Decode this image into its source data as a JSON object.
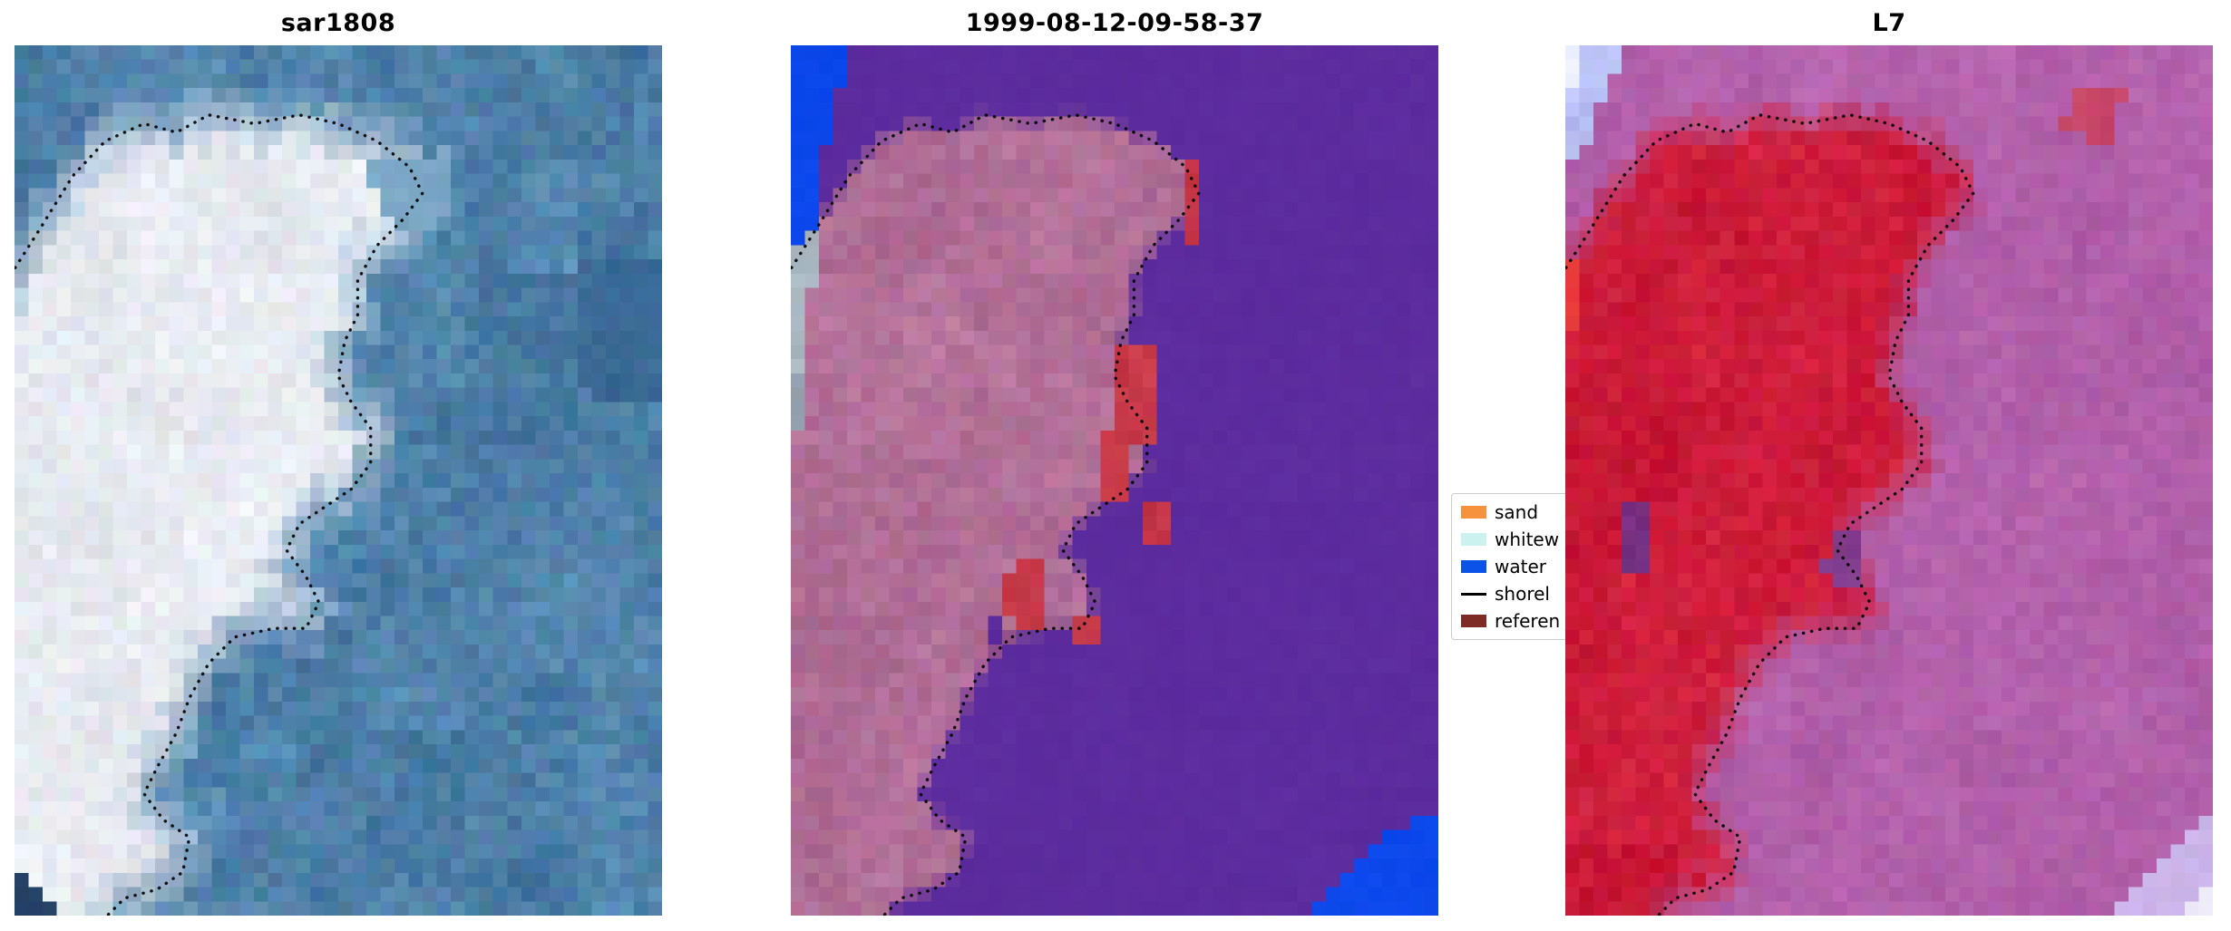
{
  "chart_data": {
    "type": "heatmap",
    "subtype": "coastal-satellite-image-triptych-with-classification-overlay",
    "panels": [
      {
        "id": "sar1808",
        "title": "sar1808",
        "water_color": [
          78,
          128,
          168
        ],
        "land_color": [
          231,
          234,
          240
        ],
        "water_noise": 22,
        "land_noise": 14,
        "edge_softness": 4,
        "patches": [
          {
            "points": [
              [
                -2,
                92
              ],
              [
                10,
                101
              ],
              [
                -2,
                101
              ]
            ],
            "color": [
              32,
              60,
              98
            ],
            "noise": 10
          },
          {
            "points": [
              [
                86,
                26
              ],
              [
                101,
                24
              ],
              [
                101,
                42
              ],
              [
                88,
                40
              ]
            ],
            "color": [
              58,
              106,
              150
            ],
            "noise": 12
          },
          {
            "points": [
              [
                55,
                14
              ],
              [
                68,
                12
              ],
              [
                66,
                22
              ],
              [
                56,
                20
              ]
            ],
            "color": [
              122,
              164,
              195
            ],
            "noise": 12
          }
        ]
      },
      {
        "id": "classified",
        "title": "1999-08-12-09-58-37",
        "water_color": [
          92,
          44,
          158
        ],
        "land_color": [
          178,
          112,
          152
        ],
        "water_noise": 3,
        "land_noise": 16,
        "edge_softness": 0.8,
        "patches": [
          {
            "points": [
              [
                -2,
                -2
              ],
              [
                10,
                -2
              ],
              [
                7,
                7
              ],
              [
                5,
                13
              ],
              [
                4,
                22
              ],
              [
                -2,
                23
              ]
            ],
            "color": [
              12,
              72,
              235
            ],
            "noise": 4
          },
          {
            "points": [
              [
                -2,
                23
              ],
              [
                4,
                22
              ],
              [
                3,
                31
              ],
              [
                2,
                38
              ],
              [
                -2,
                38
              ]
            ],
            "color": [
              168,
              182,
              192
            ],
            "noise": 10
          },
          {
            "points": [
              [
                -2,
                38
              ],
              [
                2,
                38
              ],
              [
                1,
                45
              ],
              [
                -2,
                46
              ]
            ],
            "color": [
              150,
              160,
              175
            ],
            "noise": 10
          },
          {
            "points": [
              [
                101,
                87
              ],
              [
                101,
                101
              ],
              [
                79,
                101
              ],
              [
                85,
                96
              ],
              [
                90,
                92
              ],
              [
                96,
                89
              ]
            ],
            "color": [
              12,
              72,
              235
            ],
            "noise": 4
          },
          {
            "points": [
              [
                60,
                13
              ],
              [
                64,
                13
              ],
              [
                64,
                23
              ],
              [
                60,
                22
              ]
            ],
            "color": [
              198,
              56,
              72
            ],
            "noise": 10
          },
          {
            "points": [
              [
                51,
                35
              ],
              [
                56,
                35
              ],
              [
                56,
                45
              ],
              [
                52,
                47
              ],
              [
                52,
                52
              ],
              [
                48,
                52
              ],
              [
                49,
                44
              ],
              [
                51,
                41
              ]
            ],
            "color": [
              198,
              56,
              72
            ],
            "noise": 10
          },
          {
            "points": [
              [
                55,
                53
              ],
              [
                59,
                53
              ],
              [
                59,
                58
              ],
              [
                55,
                58
              ]
            ],
            "color": [
              198,
              56,
              72
            ],
            "noise": 10
          },
          {
            "points": [
              [
                34,
                59
              ],
              [
                39,
                60
              ],
              [
                38,
                67
              ],
              [
                33,
                66
              ]
            ],
            "color": [
              198,
              56,
              72
            ],
            "noise": 10
          },
          {
            "points": [
              [
                44,
                66
              ],
              [
                47,
                66
              ],
              [
                47,
                69
              ],
              [
                44,
                69
              ]
            ],
            "color": [
              198,
              56,
              72
            ],
            "noise": 10
          },
          {
            "points": [
              [
                30,
                66
              ],
              [
                33,
                66
              ],
              [
                33,
                69
              ],
              [
                30,
                69
              ]
            ],
            "color": [
              92,
              44,
              158
            ],
            "noise": 3
          }
        ]
      },
      {
        "id": "l7",
        "title": "L7",
        "water_color": [
          178,
          96,
          170
        ],
        "land_color": [
          205,
          28,
          58
        ],
        "water_noise": 12,
        "land_noise": 16,
        "edge_softness": 2.5,
        "patches": [
          {
            "points": [
              [
                -2,
                -2
              ],
              [
                10,
                -2
              ],
              [
                6,
                6
              ],
              [
                3,
                12
              ],
              [
                -2,
                14
              ]
            ],
            "color": [
              185,
              190,
              242
            ],
            "noise": 14
          },
          {
            "points": [
              [
                -2,
                -2
              ],
              [
                4,
                -2
              ],
              [
                1,
                5
              ],
              [
                -2,
                6
              ]
            ],
            "color": [
              235,
              238,
              252
            ],
            "noise": 6
          },
          {
            "points": [
              [
                -2,
                24
              ],
              [
                2,
                24
              ],
              [
                2,
                33
              ],
              [
                -2,
                33
              ]
            ],
            "color": [
              235,
              60,
              60
            ],
            "noise": 10
          },
          {
            "points": [
              [
                78,
                4
              ],
              [
                86,
                5
              ],
              [
                85,
                12
              ],
              [
                77,
                10
              ]
            ],
            "color": [
              200,
              70,
              105
            ],
            "noise": 10
          },
          {
            "points": [
              [
                101,
                86
              ],
              [
                101,
                101
              ],
              [
                83,
                101
              ],
              [
                89,
                96
              ],
              [
                95,
                91
              ]
            ],
            "color": [
              205,
              182,
              235
            ],
            "noise": 10
          },
          {
            "points": [
              [
                101,
                95
              ],
              [
                101,
                101
              ],
              [
                93,
                101
              ]
            ],
            "color": [
              238,
              235,
              250
            ],
            "noise": 6
          },
          {
            "points": [
              [
                8,
                52
              ],
              [
                14,
                53
              ],
              [
                13,
                61
              ],
              [
                8,
                60
              ]
            ],
            "color": [
              120,
              50,
              130
            ],
            "noise": 10
          },
          {
            "points": [
              [
                41,
                55
              ],
              [
                46,
                56
              ],
              [
                45,
                62
              ],
              [
                40,
                61
              ]
            ],
            "color": [
              130,
              60,
              140
            ],
            "noise": 10
          }
        ]
      }
    ],
    "legend": {
      "entries": [
        {
          "label": "sand",
          "type": "patch",
          "color": "#f6913e"
        },
        {
          "label": "whitew",
          "type": "patch",
          "color": "#ccf2ef"
        },
        {
          "label": "water",
          "type": "patch",
          "color": "#0b52e8"
        },
        {
          "label": "shorel",
          "type": "line",
          "color": "#000000"
        },
        {
          "label": "referen",
          "type": "patch",
          "color": "#7e2b25"
        }
      ]
    },
    "shoreline": {
      "color": "#000000",
      "style": "dotted",
      "points": [
        [
          -2,
          28
        ],
        [
          4,
          21
        ],
        [
          9,
          15
        ],
        [
          14,
          11
        ],
        [
          20,
          9
        ],
        [
          25,
          10
        ],
        [
          30,
          8
        ],
        [
          37,
          9
        ],
        [
          44,
          8
        ],
        [
          50,
          9
        ],
        [
          56,
          11
        ],
        [
          61,
          14
        ],
        [
          63,
          17
        ],
        [
          60,
          20
        ],
        [
          56,
          23
        ],
        [
          53,
          27
        ],
        [
          53,
          31
        ],
        [
          51,
          34
        ],
        [
          50,
          38
        ],
        [
          52,
          41
        ],
        [
          55,
          44
        ],
        [
          55,
          48
        ],
        [
          52,
          51
        ],
        [
          48,
          53
        ],
        [
          44,
          55
        ],
        [
          42,
          58
        ],
        [
          45,
          61
        ],
        [
          47,
          64
        ],
        [
          45,
          67
        ],
        [
          40,
          67
        ],
        [
          34,
          68
        ],
        [
          30,
          71
        ],
        [
          27,
          75
        ],
        [
          25,
          79
        ],
        [
          22,
          83
        ],
        [
          20,
          86
        ],
        [
          23,
          89
        ],
        [
          27,
          91
        ],
        [
          26,
          95
        ],
        [
          22,
          97
        ],
        [
          17,
          98
        ],
        [
          13,
          101
        ]
      ]
    },
    "grid_resolution": [
      46,
      61
    ]
  }
}
